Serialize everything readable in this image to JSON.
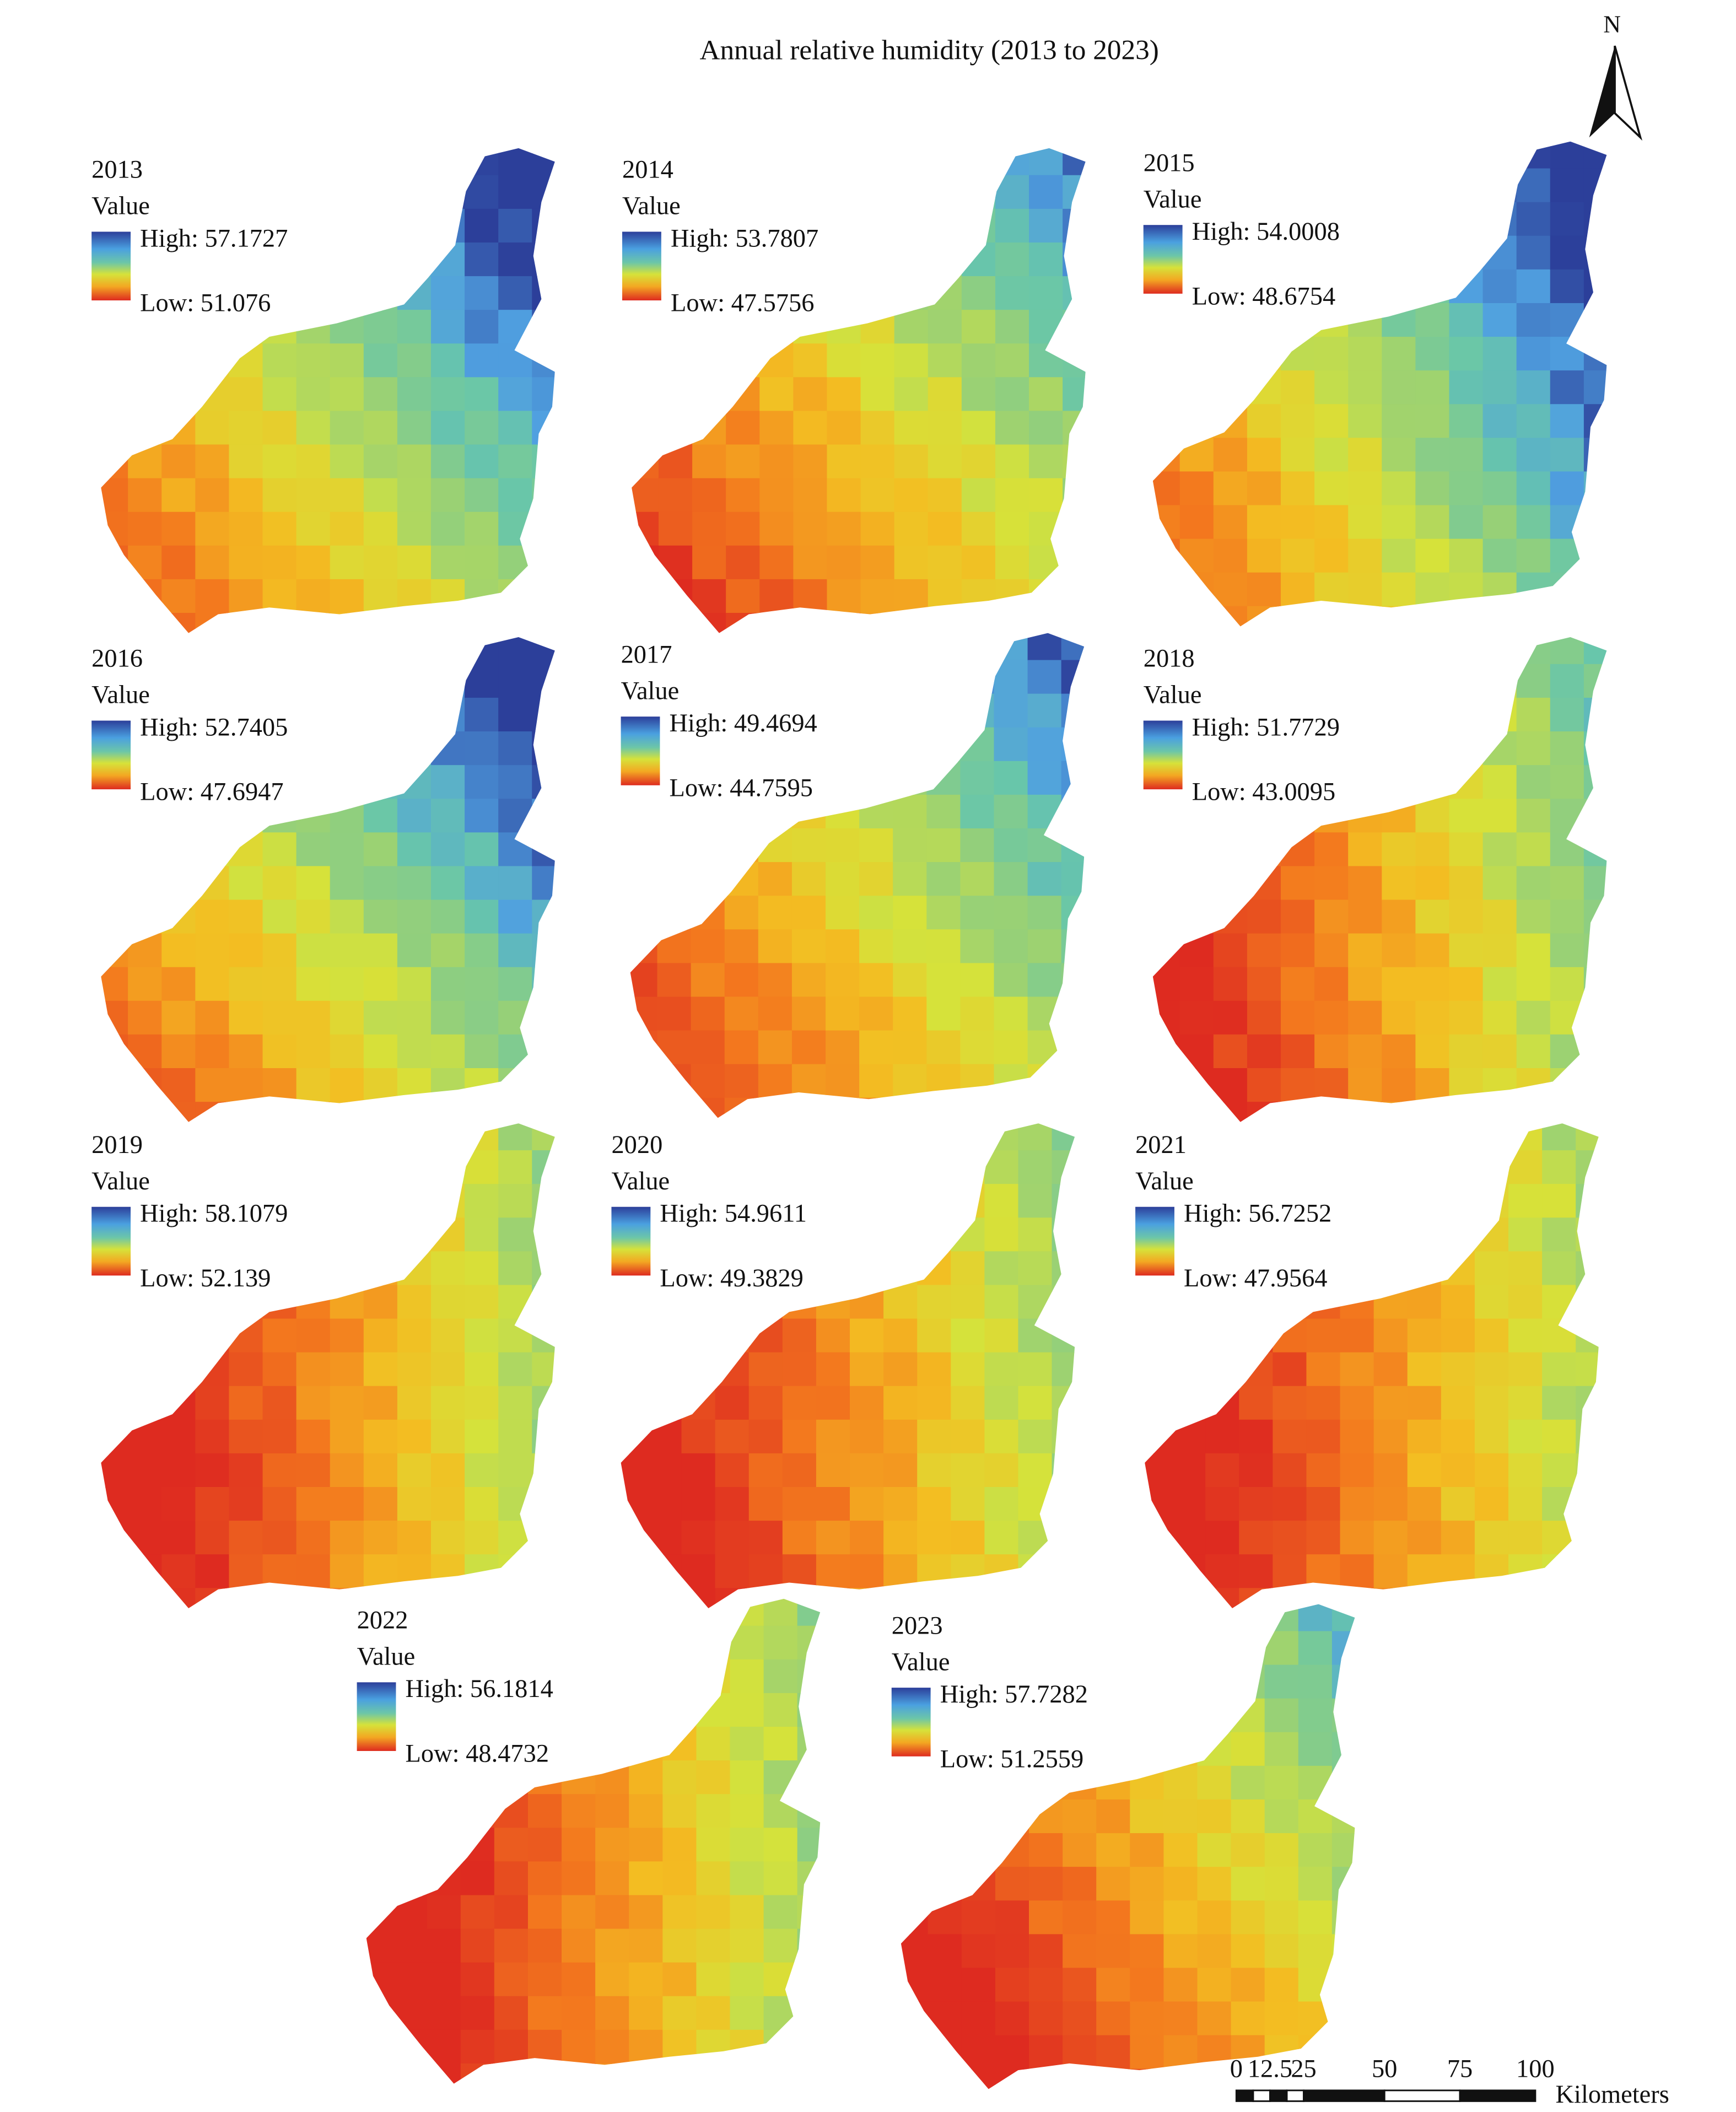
{
  "title": "Annual relative humidity (2013 to 2023)",
  "north": "N",
  "panels": [
    {
      "year": "2013",
      "legend_title": "Value",
      "high": "High: 57.1727",
      "low": "Low: 51.076"
    },
    {
      "year": "2014",
      "legend_title": "Value",
      "high": "High: 53.7807",
      "low": "Low: 47.5756"
    },
    {
      "year": "2015",
      "legend_title": "Value",
      "high": "High: 54.0008",
      "low": "Low: 48.6754"
    },
    {
      "year": "2016",
      "legend_title": "Value",
      "high": "High: 52.7405",
      "low": "Low: 47.6947"
    },
    {
      "year": "2017",
      "legend_title": "Value",
      "high": "High: 49.4694",
      "low": "Low: 44.7595"
    },
    {
      "year": "2018",
      "legend_title": "Value",
      "high": "High: 51.7729",
      "low": "Low: 43.0095"
    },
    {
      "year": "2019",
      "legend_title": "Value",
      "high": "High: 58.1079",
      "low": "Low: 52.139"
    },
    {
      "year": "2020",
      "legend_title": "Value",
      "high": "High: 54.9611",
      "low": "Low: 49.3829"
    },
    {
      "year": "2021",
      "legend_title": "Value",
      "high": "High: 56.7252",
      "low": "Low: 47.9564"
    },
    {
      "year": "2022",
      "legend_title": "Value",
      "high": "High: 56.1814",
      "low": "Low: 48.4732"
    },
    {
      "year": "2023",
      "legend_title": "Value",
      "high": "High: 57.7282",
      "low": "Low: 51.2559"
    }
  ],
  "scale_bar": {
    "labels": [
      "0",
      "12.5",
      "25",
      "50",
      "75",
      "100"
    ],
    "unit": "Kilometers"
  }
}
